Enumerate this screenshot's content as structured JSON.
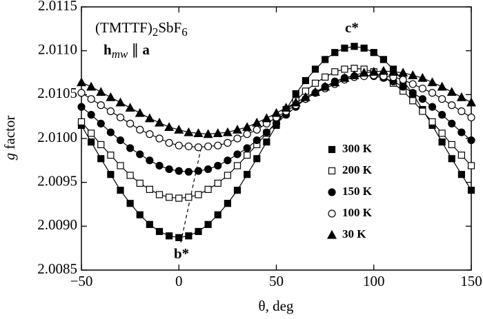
{
  "chart_data": {
    "type": "line",
    "x_label": "θ, deg",
    "y_label": {
      "parts": [
        "g",
        " factor"
      ]
    },
    "compound": {
      "parts": [
        "(TMTTF)",
        "2",
        "SbF",
        "6"
      ]
    },
    "field": {
      "parts": [
        "h",
        "mw",
        " ∥ ",
        "a"
      ]
    },
    "annotations": [
      "c*",
      "b*"
    ],
    "x": [
      -50,
      -45,
      -40,
      -35,
      -30,
      -25,
      -20,
      -15,
      -10,
      -5,
      0,
      5,
      10,
      15,
      20,
      25,
      30,
      35,
      40,
      45,
      50,
      55,
      60,
      65,
      70,
      75,
      80,
      85,
      90,
      95,
      100,
      105,
      110,
      115,
      120,
      125,
      130,
      135,
      140,
      145,
      150
    ],
    "series": [
      {
        "name": "300 K",
        "color": "#000000",
        "marker": "square",
        "values": [
          2.01015,
          2.00996,
          2.00977,
          2.00959,
          2.00941,
          2.00926,
          2.00913,
          2.00902,
          2.00894,
          2.00889,
          2.00887,
          2.00889,
          2.00894,
          2.00902,
          2.00913,
          2.00926,
          2.00941,
          2.00959,
          2.00977,
          2.00996,
          2.01015,
          2.01033,
          2.01051,
          2.01066,
          2.01079,
          2.0109,
          2.01098,
          2.01103,
          2.01105,
          2.01103,
          2.01098,
          2.0109,
          2.01079,
          2.01066,
          2.01051,
          2.01033,
          2.01015,
          2.00996,
          2.00977,
          2.00959,
          2.00941
        ]
      },
      {
        "name": "200 K",
        "color": "#000000",
        "marker": "square-open",
        "values": [
          2.01019,
          2.01006,
          2.00993,
          2.00981,
          2.00969,
          2.00958,
          2.00949,
          2.00942,
          2.00936,
          2.00933,
          2.00932,
          2.00933,
          2.00936,
          2.00942,
          2.00949,
          2.00958,
          2.00969,
          2.00981,
          2.00993,
          2.01006,
          2.01019,
          2.01031,
          2.01043,
          2.01054,
          2.01063,
          2.0107,
          2.01076,
          2.01079,
          2.0108,
          2.01079,
          2.01076,
          2.0107,
          2.01063,
          2.01054,
          2.01043,
          2.01031,
          2.01019,
          2.01006,
          2.00993,
          2.00981,
          2.00969
        ]
      },
      {
        "name": "150 K",
        "color": "#000000",
        "marker": "circle",
        "values": [
          2.01036,
          2.01027,
          2.01017,
          2.01007,
          2.00998,
          2.00989,
          2.00982,
          2.00975,
          2.00969,
          2.00965,
          2.00963,
          2.00962,
          2.00963,
          2.00965,
          2.00969,
          2.00975,
          2.00982,
          2.00989,
          2.00998,
          2.01007,
          2.01017,
          2.01027,
          2.01036,
          2.01045,
          2.01052,
          2.01059,
          2.01065,
          2.01069,
          2.01071,
          2.01072,
          2.01071,
          2.01069,
          2.01065,
          2.01059,
          2.01052,
          2.01045,
          2.01036,
          2.01027,
          2.01017,
          2.01007,
          2.00998
        ]
      },
      {
        "name": "100 K",
        "color": "#000000",
        "marker": "circle-open",
        "values": [
          2.01052,
          2.01045,
          2.01038,
          2.01031,
          2.01024,
          2.01017,
          2.0101,
          2.01005,
          2.01,
          2.00995,
          2.00992,
          2.00991,
          2.0099,
          2.00991,
          2.00992,
          2.00995,
          2.01,
          2.01005,
          2.0101,
          2.01017,
          2.01024,
          2.01031,
          2.01038,
          2.01045,
          2.01052,
          2.01057,
          2.01062,
          2.01067,
          2.0107,
          2.01071,
          2.01072,
          2.01071,
          2.0107,
          2.01067,
          2.01062,
          2.01057,
          2.01052,
          2.01045,
          2.01038,
          2.01031,
          2.01024
        ]
      },
      {
        "name": "30 K",
        "color": "#000000",
        "marker": "triangle",
        "values": [
          2.01064,
          2.01059,
          2.01053,
          2.01047,
          2.01041,
          2.01035,
          2.01029,
          2.01023,
          2.01018,
          2.01013,
          2.0101,
          2.01007,
          2.01006,
          2.01005,
          2.01006,
          2.01007,
          2.0101,
          2.01013,
          2.01018,
          2.01023,
          2.01029,
          2.01035,
          2.01041,
          2.01047,
          2.01053,
          2.01059,
          2.01064,
          2.01069,
          2.01072,
          2.01075,
          2.01076,
          2.01077,
          2.01076,
          2.01075,
          2.01072,
          2.01069,
          2.01064,
          2.01059,
          2.01053,
          2.01047,
          2.01041
        ]
      }
    ],
    "xlim": [
      -50,
      150
    ],
    "xticks": [
      {
        "value": -50,
        "label": "−50"
      },
      0,
      50,
      100,
      150
    ],
    "ylim": [
      2.0085,
      2.0115
    ],
    "yticks": [
      2.0085,
      {
        "value": 2.009,
        "label": "2.0090"
      },
      2.0095,
      {
        "value": 2.01,
        "label": "2.0100"
      },
      2.0105,
      {
        "value": 2.011,
        "label": "2.0110"
      },
      2.0115
    ],
    "grid": false
  }
}
